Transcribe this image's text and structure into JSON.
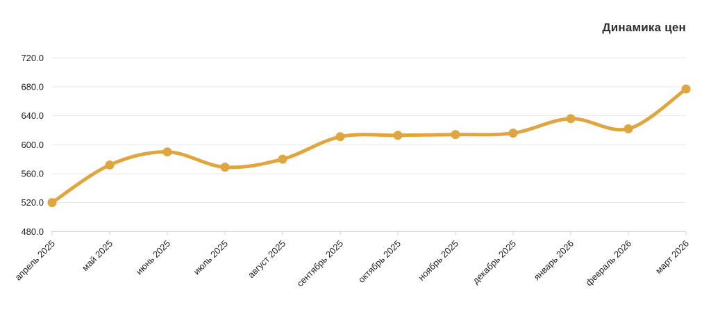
{
  "chart_data": {
    "type": "line",
    "title": "Динамика цен",
    "categories": [
      "апрель 2025",
      "май 2025",
      "июнь 2025",
      "июль 2025",
      "август 2025",
      "сентябрь 2025",
      "октябрь 2025",
      "ноябрь 2025",
      "декабрь 2025",
      "январь 2026",
      "февраль 2026",
      "март 2026"
    ],
    "values": [
      520,
      572,
      590,
      569,
      580,
      611,
      613,
      614,
      616,
      636,
      622,
      677
    ],
    "ylim": [
      480,
      720
    ],
    "yticks": [
      480,
      520,
      560,
      600,
      640,
      680,
      720
    ],
    "ytick_labels": [
      "480.0",
      "520.0",
      "560.0",
      "600.0",
      "640.0",
      "680.0",
      "720.0"
    ],
    "xlabel": "",
    "ylabel": "",
    "grid": true,
    "legend": false,
    "x_label_rotation": -45,
    "line_color": "#DFA640",
    "marker_color": "#DFA640",
    "grid_color": "#e8e8e8",
    "axis_color": "#c9ccd0",
    "text_color": "#222222"
  }
}
